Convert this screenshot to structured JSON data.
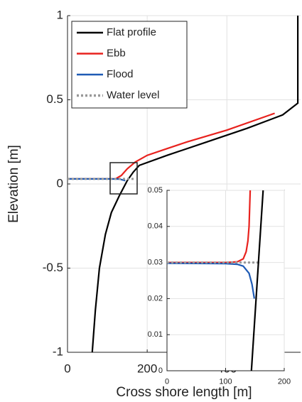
{
  "chart_data": [
    {
      "type": "line",
      "x_label": "Cross shore length [m]",
      "y_label": "Elevation [m]",
      "xlim": [
        0,
        585
      ],
      "ylim": [
        -1,
        1
      ],
      "xticks": [
        0,
        200,
        400
      ],
      "yticks": [
        -1,
        -0.5,
        0,
        0.5,
        1
      ],
      "grid": true,
      "legend": "upper-left",
      "series": [
        {
          "name": "Flat profile",
          "color": "#000000",
          "linestyle": "solid",
          "x": [
            62,
            70,
            80,
            95,
            110,
            130,
            150,
            165,
            180,
            250,
            350,
            450,
            540,
            578,
            578
          ],
          "values": [
            -1,
            -0.75,
            -0.5,
            -0.3,
            -0.17,
            -0.07,
            0.02,
            0.07,
            0.11,
            0.17,
            0.25,
            0.33,
            0.41,
            0.48,
            1
          ]
        },
        {
          "name": "Ebb",
          "color": "#e8221e",
          "linestyle": "solid",
          "x": [
            0,
            100,
            120,
            135,
            150,
            170,
            200,
            250,
            300,
            400,
            520
          ],
          "values": [
            0.03,
            0.03,
            0.03,
            0.05,
            0.09,
            0.13,
            0.17,
            0.21,
            0.25,
            0.32,
            0.42
          ]
        },
        {
          "name": "Flood",
          "color": "#1f5bb5",
          "linestyle": "solid",
          "x": [
            0,
            100,
            130,
            145
          ],
          "values": [
            0.03,
            0.03,
            0.029,
            0.02
          ]
        },
        {
          "name": "Water level",
          "color": "#999999",
          "linestyle": "dotted",
          "x": [
            0,
            170
          ],
          "values": [
            0.03,
            0.03
          ]
        }
      ]
    },
    {
      "type": "line",
      "xlim": [
        0,
        200
      ],
      "ylim": [
        0,
        0.05
      ],
      "xticks": [
        0,
        100,
        200
      ],
      "yticks": [
        0,
        0.01,
        0.02,
        0.03,
        0.04,
        0.05
      ],
      "grid": true,
      "series": [
        {
          "color": "#e8221e",
          "linestyle": "solid",
          "x": [
            0,
            100,
            120,
            130,
            135,
            138,
            140,
            142
          ],
          "values": [
            0.03,
            0.03,
            0.0302,
            0.031,
            0.033,
            0.036,
            0.04,
            0.05
          ]
        },
        {
          "color": "#1f5bb5",
          "linestyle": "solid",
          "x": [
            0,
            100,
            120,
            130,
            140,
            145,
            149
          ],
          "values": [
            0.0298,
            0.0297,
            0.0295,
            0.029,
            0.027,
            0.024,
            0.02
          ]
        },
        {
          "color": "#999999",
          "linestyle": "dotted",
          "x": [
            0,
            155
          ],
          "values": [
            0.03,
            0.03
          ]
        },
        {
          "color": "#000000",
          "linestyle": "solid",
          "x": [
            144,
            164
          ],
          "values": [
            0,
            0.05
          ]
        }
      ]
    }
  ]
}
